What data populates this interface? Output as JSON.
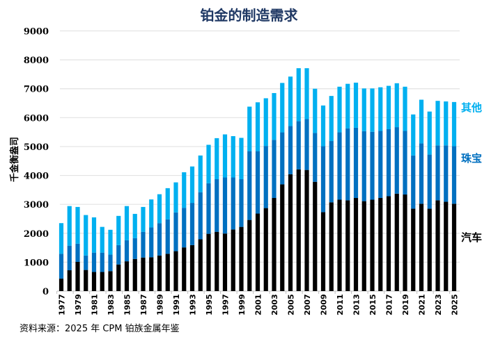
{
  "chart_data": {
    "type": "bar",
    "stacked": true,
    "title": "铂金的制造需求",
    "ylabel": "千金衡盎司",
    "xlabel": "",
    "ylim": [
      0,
      9000
    ],
    "yticks": [
      0,
      1000,
      2000,
      3000,
      4000,
      5000,
      6000,
      7000,
      8000,
      9000
    ],
    "grid": true,
    "legend": "right, labels next to last bar",
    "categories": [
      1977,
      1978,
      1979,
      1980,
      1981,
      1982,
      1983,
      1984,
      1985,
      1986,
      1987,
      1988,
      1989,
      1990,
      1991,
      1992,
      1993,
      1994,
      1995,
      1996,
      1997,
      1998,
      1999,
      2000,
      2001,
      2002,
      2003,
      2004,
      2005,
      2006,
      2007,
      2008,
      2009,
      2010,
      2011,
      2012,
      2013,
      2014,
      2015,
      2016,
      2017,
      2018,
      2019,
      2020,
      2021,
      2022,
      2023,
      2024,
      2025
    ],
    "series": [
      {
        "name": "汽车",
        "color": "#000000",
        "values": [
          430,
          720,
          1010,
          730,
          660,
          660,
          690,
          920,
          1030,
          1110,
          1160,
          1170,
          1230,
          1290,
          1380,
          1510,
          1590,
          1790,
          1980,
          2050,
          1990,
          2130,
          2220,
          2460,
          2680,
          2870,
          3220,
          3690,
          4040,
          4210,
          4190,
          3780,
          2730,
          3070,
          3160,
          3140,
          3220,
          3110,
          3160,
          3220,
          3280,
          3370,
          3340,
          2850,
          3020,
          2850,
          3140,
          3090,
          3020
        ]
      },
      {
        "name": "珠宝",
        "color": "#0070C0",
        "values": [
          860,
          850,
          630,
          500,
          670,
          670,
          570,
          670,
          730,
          720,
          890,
          1030,
          1120,
          1190,
          1340,
          1370,
          1460,
          1630,
          1750,
          1820,
          1940,
          1800,
          1650,
          2380,
          2160,
          2150,
          2010,
          1800,
          1670,
          1670,
          1760,
          1690,
          2280,
          2120,
          2330,
          2490,
          2430,
          2420,
          2350,
          2320,
          2320,
          2300,
          2200,
          1840,
          2090,
          1870,
          1900,
          1950,
          1990
        ]
      },
      {
        "name": "其他",
        "color": "#00B0F0",
        "values": [
          1060,
          1370,
          1270,
          1400,
          1220,
          890,
          860,
          1010,
          1180,
          840,
          860,
          970,
          1000,
          1080,
          1040,
          1230,
          1260,
          1270,
          1330,
          1420,
          1490,
          1430,
          1430,
          1540,
          1690,
          1650,
          1620,
          1710,
          1710,
          1830,
          1760,
          1530,
          1410,
          1560,
          1580,
          1540,
          1560,
          1480,
          1500,
          1510,
          1500,
          1520,
          1530,
          1420,
          1510,
          1490,
          1540,
          1520,
          1530
        ]
      }
    ]
  },
  "source": "资料来源：2025 年 CPM 铂族金属年鉴"
}
